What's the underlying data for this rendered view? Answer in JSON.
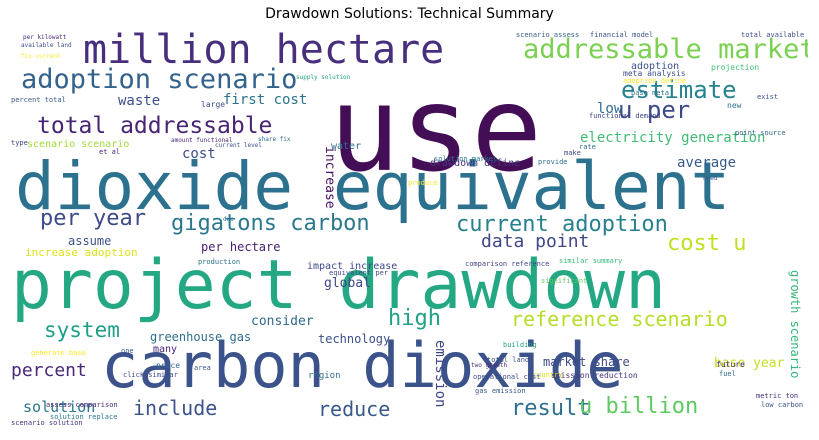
{
  "title": "Drawdown Solutions: Technical Summary",
  "words": [
    {
      "text": "use",
      "color": "#440e57",
      "rot": 0
    },
    {
      "text": "dioxide equivalent",
      "color": "#2c718e",
      "rot": 0
    },
    {
      "text": "project drawdown",
      "color": "#24a884",
      "rot": 0
    },
    {
      "text": "carbon dioxide",
      "color": "#3b528b",
      "rot": 0
    },
    {
      "text": "million hectare",
      "color": "#472f7d",
      "rot": 0
    },
    {
      "text": "addressable market",
      "color": "#7ad151",
      "rot": 0
    },
    {
      "text": "adoption scenario",
      "color": "#33638d",
      "rot": 0
    },
    {
      "text": "total addressable",
      "color": "#482475",
      "rot": 0
    },
    {
      "text": "estimate",
      "color": "#26828e",
      "rot": 0
    },
    {
      "text": "u per",
      "color": "#3e4989",
      "rot": 0
    },
    {
      "text": "gigatons carbon",
      "color": "#2a788e",
      "rot": 0
    },
    {
      "text": "current adoption",
      "color": "#27808e",
      "rot": 0
    },
    {
      "text": "per year",
      "color": "#3e4a89",
      "rot": 0
    },
    {
      "text": "cost u",
      "color": "#c2df23",
      "rot": 0
    },
    {
      "text": "data point",
      "color": "#3f4788",
      "rot": 0
    },
    {
      "text": "system",
      "color": "#1f9f88",
      "rot": 0
    },
    {
      "text": "high",
      "color": "#1fa187",
      "rot": 0
    },
    {
      "text": "reference scenario",
      "color": "#b5de2b",
      "rot": 0
    },
    {
      "text": "result",
      "color": "#2d708e",
      "rot": 0
    },
    {
      "text": "u billion",
      "color": "#5ec962",
      "rot": 0
    },
    {
      "text": "include",
      "color": "#3b528b",
      "rot": 0
    },
    {
      "text": "reduce",
      "color": "#38598c",
      "rot": 0
    },
    {
      "text": "emission",
      "color": "#414487",
      "rot": 90
    },
    {
      "text": "percent",
      "color": "#482878",
      "rot": 0
    },
    {
      "text": "solution",
      "color": "#2a778e",
      "rot": 0
    },
    {
      "text": "waste",
      "color": "#3c4f8a",
      "rot": 0
    },
    {
      "text": "first cost",
      "color": "#2c728e",
      "rot": 0
    },
    {
      "text": "low",
      "color": "#2e6e8e",
      "rot": 0
    },
    {
      "text": "electricity generation",
      "color": "#3fbc73",
      "rot": 0
    },
    {
      "text": "cost",
      "color": "#3e4c8a",
      "rot": 0
    },
    {
      "text": "average",
      "color": "#375a8c",
      "rot": 0
    },
    {
      "text": "increase",
      "color": "#471063",
      "rot": 90
    },
    {
      "text": "per hectare",
      "color": "#482173",
      "rot": 0
    },
    {
      "text": "assume",
      "color": "#3b528b",
      "rot": 0
    },
    {
      "text": "increase adoption",
      "color": "#dde318",
      "rot": 0
    },
    {
      "text": "global",
      "color": "#3f4788",
      "rot": 0
    },
    {
      "text": "consider",
      "color": "#31688e",
      "rot": 0
    },
    {
      "text": "greenhouse gas",
      "color": "#2e6f8e",
      "rot": 0
    },
    {
      "text": "technology",
      "color": "#3c508b",
      "rot": 0
    },
    {
      "text": "market share",
      "color": "#3e4a89",
      "rot": 0
    },
    {
      "text": "base year",
      "color": "#c8e020",
      "rot": 0
    },
    {
      "text": "growth scenario",
      "color": "#35b779",
      "rot": 90
    },
    {
      "text": "adoption",
      "color": "#3b528b",
      "rot": 0
    },
    {
      "text": "water",
      "color": "#2d708e",
      "rot": 0
    },
    {
      "text": "impact increase",
      "color": "#3e4989",
      "rot": 0
    },
    {
      "text": "region",
      "color": "#2f6c8e",
      "rot": 0
    },
    {
      "text": "emission reduction",
      "color": "#46337e",
      "rot": 0
    },
    {
      "text": "scenario assess",
      "color": "#34608d",
      "rot": 0
    },
    {
      "text": "financial model",
      "color": "#3b528b",
      "rot": 0
    },
    {
      "text": "total available",
      "color": "#3e4989",
      "rot": 0
    },
    {
      "text": "per kilowatt",
      "color": "#482979",
      "rot": 0
    },
    {
      "text": "available land",
      "color": "#3d4d8a",
      "rot": 0
    },
    {
      "text": "meta analysis",
      "color": "#3b518b",
      "rot": 0
    },
    {
      "text": "adoption define",
      "color": "#fde725",
      "rot": 0
    },
    {
      "text": "projection",
      "color": "#3fbc73",
      "rot": 0
    },
    {
      "text": "base meta",
      "color": "#2c728e",
      "rot": 0
    },
    {
      "text": "supply solution",
      "color": "#20a486",
      "rot": 0
    },
    {
      "text": "percent total",
      "color": "#38598c",
      "rot": 0
    },
    {
      "text": "functional demand",
      "color": "#414487",
      "rot": 0
    },
    {
      "text": "scenario scenario",
      "color": "#9fda3a",
      "rot": 0
    },
    {
      "text": "drawdown define",
      "color": "#46337e",
      "rot": 0
    },
    {
      "text": "solution market",
      "color": "#2a788e",
      "rot": 0
    },
    {
      "text": "provide",
      "color": "#2c718e",
      "rot": 0
    },
    {
      "text": "current level",
      "color": "#3b528b",
      "rot": 0
    },
    {
      "text": "amount functional",
      "color": "#482878",
      "rot": 0
    },
    {
      "text": "share fix",
      "color": "#2d708e",
      "rot": 0
    },
    {
      "text": "equivalent per",
      "color": "#3e4a89",
      "rot": 0
    },
    {
      "text": "comparison reference",
      "color": "#414487",
      "rot": 0
    },
    {
      "text": "similar summary",
      "color": "#35b779",
      "rot": 0
    },
    {
      "text": "significant",
      "color": "#5ec962",
      "rot": 0
    },
    {
      "text": "production",
      "color": "#2c728e",
      "rot": 0
    },
    {
      "text": "many",
      "color": "#482475",
      "rot": 0
    },
    {
      "text": "price",
      "color": "#31688e",
      "rot": 0
    },
    {
      "text": "area",
      "color": "#38598c",
      "rot": 0
    },
    {
      "text": "click similar",
      "color": "#3e4a89",
      "rot": 0
    },
    {
      "text": "building",
      "color": "#1fa187",
      "rot": 0
    },
    {
      "text": "country",
      "color": "#dde318",
      "rot": 0
    },
    {
      "text": "total land",
      "color": "#3b528b",
      "rot": 0
    },
    {
      "text": "future",
      "color": "#482878",
      "rot": 0
    },
    {
      "text": "fuel",
      "color": "#31688e",
      "rot": 0
    },
    {
      "text": "operational cost",
      "color": "#3e4989",
      "rot": 0
    },
    {
      "text": "gas emission",
      "color": "#38598c",
      "rot": 0
    },
    {
      "text": "low carbon",
      "color": "#3b528b",
      "rot": 0
    },
    {
      "text": "metric ton",
      "color": "#472f7d",
      "rot": 0
    },
    {
      "text": "solution replace",
      "color": "#2a788e",
      "rot": 0
    },
    {
      "text": "assess comparison",
      "color": "#482878",
      "rot": 0
    },
    {
      "text": "scenario solution",
      "color": "#46337e",
      "rot": 0
    },
    {
      "text": "generate base",
      "color": "#fde725",
      "rot": 0
    },
    {
      "text": "fix current",
      "color": "#fde725",
      "rot": 0
    },
    {
      "text": "point source",
      "color": "#31688e",
      "rot": 0
    },
    {
      "text": "large",
      "color": "#3e4a89",
      "rot": 0
    },
    {
      "text": "et al",
      "color": "#482475",
      "rot": 0
    },
    {
      "text": "new",
      "color": "#2c728e",
      "rot": 0
    },
    {
      "text": "exist",
      "color": "#3b528b",
      "rot": 0
    },
    {
      "text": "type",
      "color": "#414487",
      "rot": 0
    },
    {
      "text": "make",
      "color": "#3e4a89",
      "rot": 0
    },
    {
      "text": "rate",
      "color": "#2d708e",
      "rot": 0
    },
    {
      "text": "need",
      "color": "#38598c",
      "rot": 0
    },
    {
      "text": "produce",
      "color": "#fde725",
      "rot": 0
    },
    {
      "text": "one",
      "color": "#3b528b",
      "rot": 0
    },
    {
      "text": "two growth",
      "color": "#482878",
      "rot": 0
    },
    {
      "text": "due",
      "color": "#2c728e",
      "rot": 0
    }
  ]
}
